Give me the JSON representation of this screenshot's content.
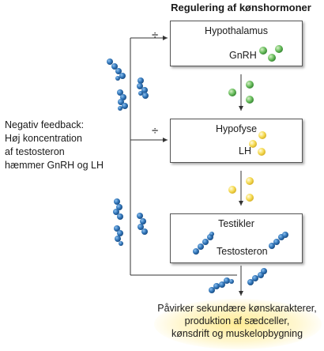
{
  "title": "Regulering af kønshormoner",
  "boxes": {
    "hypothalamus": {
      "label": "Hypothalamus",
      "hormone": "GnRH"
    },
    "hypofyse": {
      "label": "Hypofyse",
      "hormone": "LH"
    },
    "testikler": {
      "label": "Testikler",
      "hormone": "Testosteron"
    }
  },
  "inhibition_sign": "÷",
  "feedback_text": {
    "line1": "Negativ feedback:",
    "line2": "Høj koncentration",
    "line3": "af testosteron",
    "line4": "hæmmer GnRH og LH"
  },
  "effects_text": {
    "line1": "Påvirker sekundære kønskarakterer,",
    "line2": "produktion af sædceller,",
    "line3": "kønsdrift og muskelopbygning"
  },
  "colors": {
    "gnrh": "#5cb85c",
    "lh": "#f2d64b",
    "testosterone": "#2f6fb0",
    "line": "#333333",
    "glow": "#ffe98a"
  }
}
